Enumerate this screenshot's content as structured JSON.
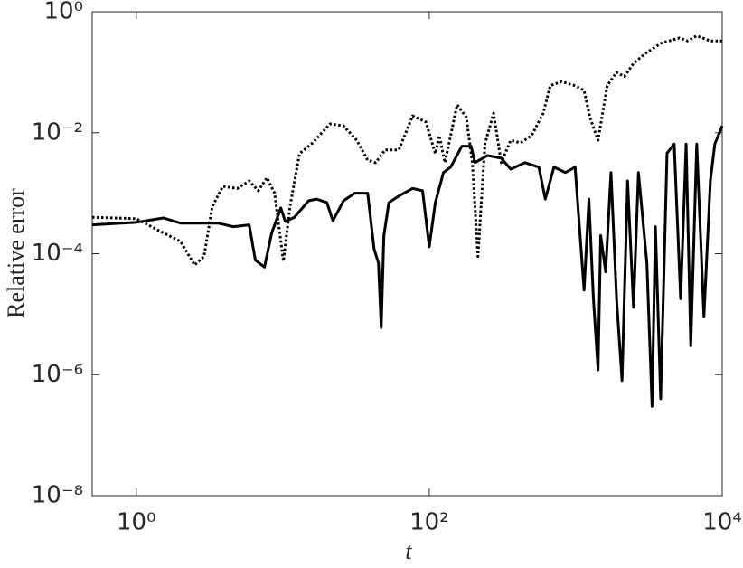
{
  "chart_data": {
    "type": "line",
    "xlabel": "t",
    "ylabel": "Relative error",
    "xscale": "log",
    "yscale": "log",
    "xlim": [
      0.5,
      10000
    ],
    "ylim": [
      1e-08,
      1
    ],
    "xticks": [
      {
        "value": 1,
        "label": "10⁰"
      },
      {
        "value": 100,
        "label": "10²"
      },
      {
        "value": 10000,
        "label": "10⁴"
      }
    ],
    "yticks": [
      {
        "value": 1e-08,
        "label": "10⁻⁸"
      },
      {
        "value": 1e-06,
        "label": "10⁻⁶"
      },
      {
        "value": 0.0001,
        "label": "10⁻⁴"
      },
      {
        "value": 0.01,
        "label": "10⁻²"
      },
      {
        "value": 1,
        "label": "10⁰"
      }
    ],
    "series": [
      {
        "color": "#000000",
        "style": "solid",
        "x": [
          0.5,
          1,
          1.53,
          2.0,
          3.6,
          4.6,
          5.9,
          6.5,
          7.5,
          8.4,
          9.7,
          10.4,
          12,
          15,
          17,
          20,
          22,
          26,
          31,
          38,
          42,
          45,
          47,
          49,
          53,
          62,
          77,
          90,
          100,
          110,
          125,
          140,
          167,
          193,
          205,
          250,
          310,
          360,
          450,
          560,
          620,
          710,
          850,
          990,
          1140,
          1230,
          1320,
          1420,
          1480,
          1600,
          1740,
          1900,
          2070,
          2260,
          2480,
          2680,
          3060,
          3320,
          3500,
          3800,
          4200,
          4700,
          5200,
          5670,
          6100,
          6700,
          7500,
          8300,
          8900,
          10000
        ],
        "values": [
          0.0003,
          0.00033,
          0.00039,
          0.00032,
          0.00032,
          0.00028,
          0.0003,
          7.8e-05,
          6e-05,
          0.00022,
          0.00057,
          0.00034,
          0.0004,
          0.00075,
          0.0008,
          0.0007,
          0.00035,
          0.00075,
          0.001,
          0.001,
          0.00012,
          7e-05,
          6e-06,
          0.0002,
          0.0007,
          0.0009,
          0.0012,
          0.0011,
          0.00013,
          0.0007,
          0.0022,
          0.0027,
          0.006,
          0.006,
          0.0032,
          0.0042,
          0.0038,
          0.0025,
          0.0032,
          0.0027,
          0.0008,
          0.0027,
          0.0022,
          0.0027,
          2.5e-05,
          0.0008,
          1.8e-05,
          1.2e-06,
          0.0002,
          5e-05,
          0.0022,
          1.8e-05,
          8e-07,
          0.0016,
          1.3e-05,
          0.0022,
          7e-05,
          3e-07,
          0.00028,
          4e-07,
          0.0046,
          0.0065,
          1.8e-05,
          0.0065,
          3e-06,
          0.0065,
          9e-06,
          0.0016,
          0.0065,
          0.013
        ]
      },
      {
        "color": "#000000",
        "style": "dotted",
        "x": [
          0.5,
          1,
          1.43,
          2.0,
          2.5,
          2.9,
          3.3,
          3.9,
          4.9,
          5.9,
          6.8,
          7.8,
          8.8,
          10.1,
          11.2,
          13,
          16,
          21,
          26,
          32,
          38,
          43,
          50,
          62,
          77,
          95,
          110,
          117,
          128,
          155,
          179,
          197,
          215,
          240,
          275,
          310,
          360,
          420,
          500,
          600,
          670,
          800,
          990,
          1140,
          1250,
          1420,
          1640,
          1900,
          2150,
          2480,
          2950,
          3800,
          5100,
          5800,
          6700,
          8300,
          10000
        ],
        "values": [
          0.0004,
          0.00038,
          0.00024,
          0.00016,
          6.5e-05,
          9e-05,
          0.0006,
          0.0013,
          0.0012,
          0.0016,
          0.0011,
          0.0018,
          0.001,
          7.5e-05,
          0.0006,
          0.0045,
          0.0068,
          0.014,
          0.013,
          0.0075,
          0.0035,
          0.0032,
          0.0052,
          0.0052,
          0.019,
          0.015,
          0.0045,
          0.009,
          0.0032,
          0.029,
          0.018,
          0.0032,
          9e-05,
          0.0065,
          0.021,
          0.0032,
          0.0075,
          0.0068,
          0.009,
          0.021,
          0.06,
          0.07,
          0.06,
          0.05,
          0.018,
          0.0075,
          0.06,
          0.1,
          0.085,
          0.14,
          0.2,
          0.3,
          0.37,
          0.33,
          0.4,
          0.33,
          0.33
        ]
      }
    ]
  }
}
